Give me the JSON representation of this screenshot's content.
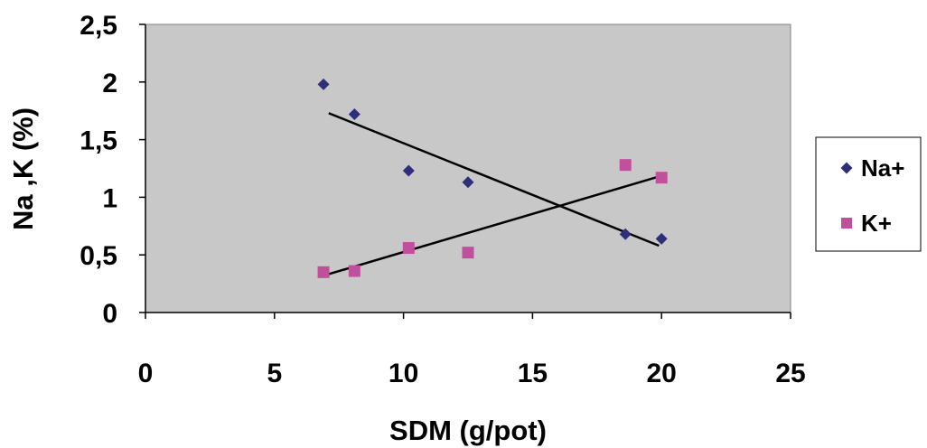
{
  "chart_data": {
    "type": "scatter",
    "xlabel": "SDM (g/pot)",
    "ylabel": "Na ,K (%)",
    "xlim": [
      0,
      25
    ],
    "ylim": [
      0,
      2.5
    ],
    "x_ticks": [
      "0",
      "5",
      "10",
      "15",
      "20",
      "25"
    ],
    "y_ticks": [
      "0",
      "0,5",
      "1",
      "1,5",
      "2",
      "2,5"
    ],
    "grid": false,
    "plot_background": "#c8c8c8",
    "legend_position": "right",
    "series": [
      {
        "name": "Na+",
        "marker": "diamond",
        "color": "#2e2e7a",
        "points": [
          {
            "x": 6.9,
            "y": 1.98
          },
          {
            "x": 8.1,
            "y": 1.72
          },
          {
            "x": 10.2,
            "y": 1.23
          },
          {
            "x": 12.5,
            "y": 1.13
          },
          {
            "x": 18.6,
            "y": 0.68
          },
          {
            "x": 20.0,
            "y": 0.64
          }
        ],
        "trendline": {
          "x": [
            7.1,
            19.9
          ],
          "y": [
            1.73,
            0.58
          ]
        }
      },
      {
        "name": "K+",
        "marker": "square",
        "color": "#c0509c",
        "points": [
          {
            "x": 6.9,
            "y": 0.35
          },
          {
            "x": 8.1,
            "y": 0.36
          },
          {
            "x": 10.2,
            "y": 0.56
          },
          {
            "x": 12.5,
            "y": 0.52
          },
          {
            "x": 18.6,
            "y": 1.28
          },
          {
            "x": 20.0,
            "y": 1.17
          }
        ],
        "trendline": {
          "x": [
            6.9,
            19.9
          ],
          "y": [
            0.32,
            1.18
          ]
        }
      }
    ]
  }
}
